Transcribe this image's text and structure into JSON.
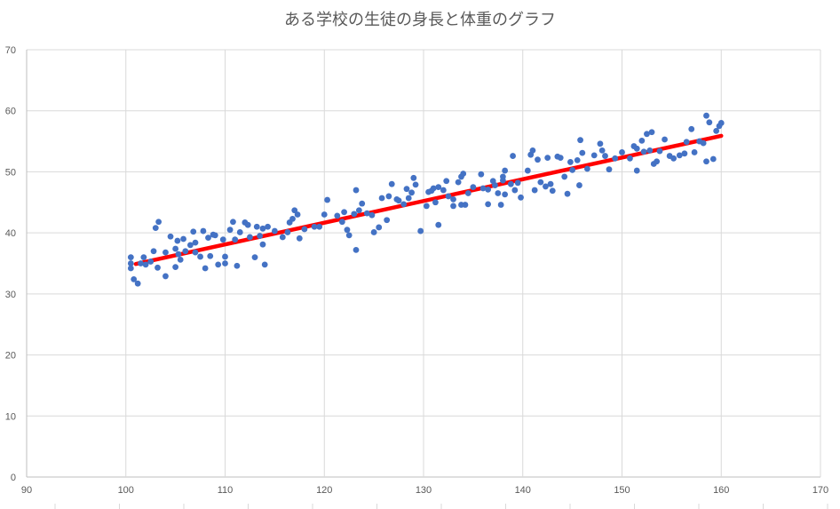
{
  "chart_data": {
    "type": "scatter",
    "title": "ある学校の生徒の身長と体重のグラフ",
    "xlabel": "",
    "ylabel": "",
    "xlim": [
      90,
      170
    ],
    "ylim": [
      0,
      70
    ],
    "x_ticks": [
      90,
      100,
      110,
      120,
      130,
      140,
      150,
      160,
      170
    ],
    "y_ticks": [
      0,
      10,
      20,
      30,
      40,
      50,
      60,
      70
    ],
    "grid": true,
    "legend": "none",
    "colors": {
      "points": "#4472c4",
      "trendline": "#ff0000"
    },
    "trendline": {
      "type": "linear",
      "x": [
        101,
        160
      ],
      "y": [
        34.9,
        55.9
      ]
    },
    "series": [
      {
        "points": [
          [
            100.5,
            36.0
          ],
          [
            100.5,
            35.0
          ],
          [
            100.5,
            34.2
          ],
          [
            100.8,
            32.4
          ],
          [
            101.2,
            31.7
          ],
          [
            101.5,
            35.0
          ],
          [
            101.8,
            36.0
          ],
          [
            102.0,
            34.8
          ],
          [
            102.5,
            35.3
          ],
          [
            102.8,
            37.0
          ],
          [
            103.0,
            40.8
          ],
          [
            103.3,
            41.8
          ],
          [
            103.2,
            34.3
          ],
          [
            104.0,
            36.8
          ],
          [
            104.0,
            32.9
          ],
          [
            104.5,
            39.4
          ],
          [
            105.0,
            37.4
          ],
          [
            105.2,
            38.7
          ],
          [
            105.0,
            34.4
          ],
          [
            105.3,
            36.5
          ],
          [
            105.5,
            35.6
          ],
          [
            105.8,
            39.0
          ],
          [
            106.0,
            37.0
          ],
          [
            106.5,
            38.0
          ],
          [
            106.8,
            40.2
          ],
          [
            107.0,
            36.8
          ],
          [
            107.0,
            38.4
          ],
          [
            107.5,
            36.1
          ],
          [
            107.8,
            40.3
          ],
          [
            108.0,
            34.2
          ],
          [
            108.3,
            39.2
          ],
          [
            108.5,
            36.2
          ],
          [
            108.8,
            39.7
          ],
          [
            109.0,
            39.6
          ],
          [
            109.3,
            34.8
          ],
          [
            109.8,
            38.9
          ],
          [
            110.0,
            35.0
          ],
          [
            110.0,
            36.1
          ],
          [
            110.5,
            40.5
          ],
          [
            110.8,
            41.8
          ],
          [
            111.0,
            38.9
          ],
          [
            111.2,
            34.6
          ],
          [
            111.5,
            40.1
          ],
          [
            112.0,
            41.7
          ],
          [
            112.3,
            41.3
          ],
          [
            112.5,
            39.3
          ],
          [
            113.0,
            36.0
          ],
          [
            113.2,
            41.0
          ],
          [
            113.5,
            39.5
          ],
          [
            113.8,
            38.1
          ],
          [
            113.8,
            40.7
          ],
          [
            114.0,
            34.8
          ],
          [
            114.3,
            41.0
          ],
          [
            115.0,
            40.3
          ],
          [
            115.8,
            39.3
          ],
          [
            116.3,
            40.1
          ],
          [
            116.5,
            41.7
          ],
          [
            116.8,
            42.3
          ],
          [
            117.0,
            43.7
          ],
          [
            117.3,
            43.0
          ],
          [
            117.5,
            39.1
          ],
          [
            118.0,
            40.6
          ],
          [
            119.0,
            41.0
          ],
          [
            119.5,
            41.0
          ],
          [
            120.0,
            43.0
          ],
          [
            120.3,
            45.4
          ],
          [
            121.3,
            42.8
          ],
          [
            121.8,
            41.8
          ],
          [
            122.0,
            43.4
          ],
          [
            122.3,
            40.5
          ],
          [
            122.5,
            39.6
          ],
          [
            123.0,
            43.1
          ],
          [
            123.2,
            47.0
          ],
          [
            123.2,
            37.2
          ],
          [
            123.5,
            43.7
          ],
          [
            123.8,
            44.8
          ],
          [
            124.3,
            43.2
          ],
          [
            124.8,
            42.9
          ],
          [
            125.0,
            40.1
          ],
          [
            125.5,
            40.9
          ],
          [
            125.8,
            45.7
          ],
          [
            126.3,
            42.1
          ],
          [
            126.5,
            46.0
          ],
          [
            126.8,
            48.0
          ],
          [
            127.3,
            45.5
          ],
          [
            127.5,
            45.3
          ],
          [
            128.0,
            44.7
          ],
          [
            128.3,
            47.2
          ],
          [
            128.5,
            45.7
          ],
          [
            128.8,
            46.6
          ],
          [
            129.0,
            49.0
          ],
          [
            129.2,
            47.9
          ],
          [
            129.7,
            40.3
          ],
          [
            130.3,
            44.4
          ],
          [
            130.5,
            46.7
          ],
          [
            130.8,
            46.9
          ],
          [
            131.0,
            47.3
          ],
          [
            131.2,
            45.0
          ],
          [
            131.5,
            47.5
          ],
          [
            131.5,
            41.3
          ],
          [
            132.0,
            47.0
          ],
          [
            132.3,
            48.5
          ],
          [
            132.5,
            46.0
          ],
          [
            133.0,
            45.5
          ],
          [
            133.0,
            44.4
          ],
          [
            133.5,
            48.3
          ],
          [
            133.8,
            49.2
          ],
          [
            133.8,
            44.6
          ],
          [
            134.0,
            49.7
          ],
          [
            134.2,
            44.6
          ],
          [
            134.5,
            46.5
          ],
          [
            135.0,
            47.5
          ],
          [
            135.8,
            49.6
          ],
          [
            136.0,
            47.3
          ],
          [
            136.5,
            44.7
          ],
          [
            136.5,
            47.1
          ],
          [
            137.0,
            48.5
          ],
          [
            137.2,
            47.8
          ],
          [
            137.5,
            46.5
          ],
          [
            137.8,
            44.6
          ],
          [
            138.0,
            48.6
          ],
          [
            138.0,
            49.2
          ],
          [
            138.2,
            50.2
          ],
          [
            138.2,
            46.3
          ],
          [
            138.8,
            48.0
          ],
          [
            139.0,
            52.6
          ],
          [
            139.2,
            47.0
          ],
          [
            139.5,
            48.2
          ],
          [
            139.8,
            45.8
          ],
          [
            140.5,
            50.2
          ],
          [
            140.8,
            52.8
          ],
          [
            141.0,
            53.5
          ],
          [
            141.2,
            47.0
          ],
          [
            141.5,
            52.0
          ],
          [
            141.8,
            48.3
          ],
          [
            142.3,
            47.6
          ],
          [
            142.5,
            52.3
          ],
          [
            142.8,
            48.0
          ],
          [
            143.0,
            46.9
          ],
          [
            143.5,
            52.5
          ],
          [
            143.8,
            52.3
          ],
          [
            144.2,
            49.2
          ],
          [
            144.5,
            46.4
          ],
          [
            144.8,
            51.6
          ],
          [
            145.0,
            50.3
          ],
          [
            145.5,
            51.9
          ],
          [
            145.8,
            55.2
          ],
          [
            146.0,
            53.1
          ],
          [
            145.7,
            47.8
          ],
          [
            146.5,
            50.5
          ],
          [
            147.2,
            52.7
          ],
          [
            147.8,
            54.6
          ],
          [
            148.0,
            53.5
          ],
          [
            148.3,
            52.6
          ],
          [
            148.7,
            50.4
          ],
          [
            149.3,
            52.2
          ],
          [
            150.0,
            53.2
          ],
          [
            150.8,
            52.2
          ],
          [
            151.2,
            54.2
          ],
          [
            151.5,
            53.8
          ],
          [
            151.5,
            50.2
          ],
          [
            152.0,
            55.1
          ],
          [
            152.2,
            53.3
          ],
          [
            152.5,
            56.2
          ],
          [
            152.8,
            53.5
          ],
          [
            153.0,
            56.5
          ],
          [
            153.2,
            51.3
          ],
          [
            153.5,
            51.7
          ],
          [
            153.8,
            53.4
          ],
          [
            154.3,
            55.3
          ],
          [
            154.8,
            52.6
          ],
          [
            155.2,
            52.2
          ],
          [
            155.8,
            52.7
          ],
          [
            156.3,
            53.0
          ],
          [
            156.5,
            54.9
          ],
          [
            157.0,
            57.0
          ],
          [
            157.3,
            53.2
          ],
          [
            157.8,
            55.0
          ],
          [
            158.2,
            54.7
          ],
          [
            158.5,
            59.2
          ],
          [
            158.8,
            58.1
          ],
          [
            159.2,
            52.1
          ],
          [
            159.5,
            56.7
          ],
          [
            159.8,
            57.5
          ],
          [
            160.0,
            58.0
          ],
          [
            158.5,
            51.7
          ]
        ]
      }
    ]
  }
}
